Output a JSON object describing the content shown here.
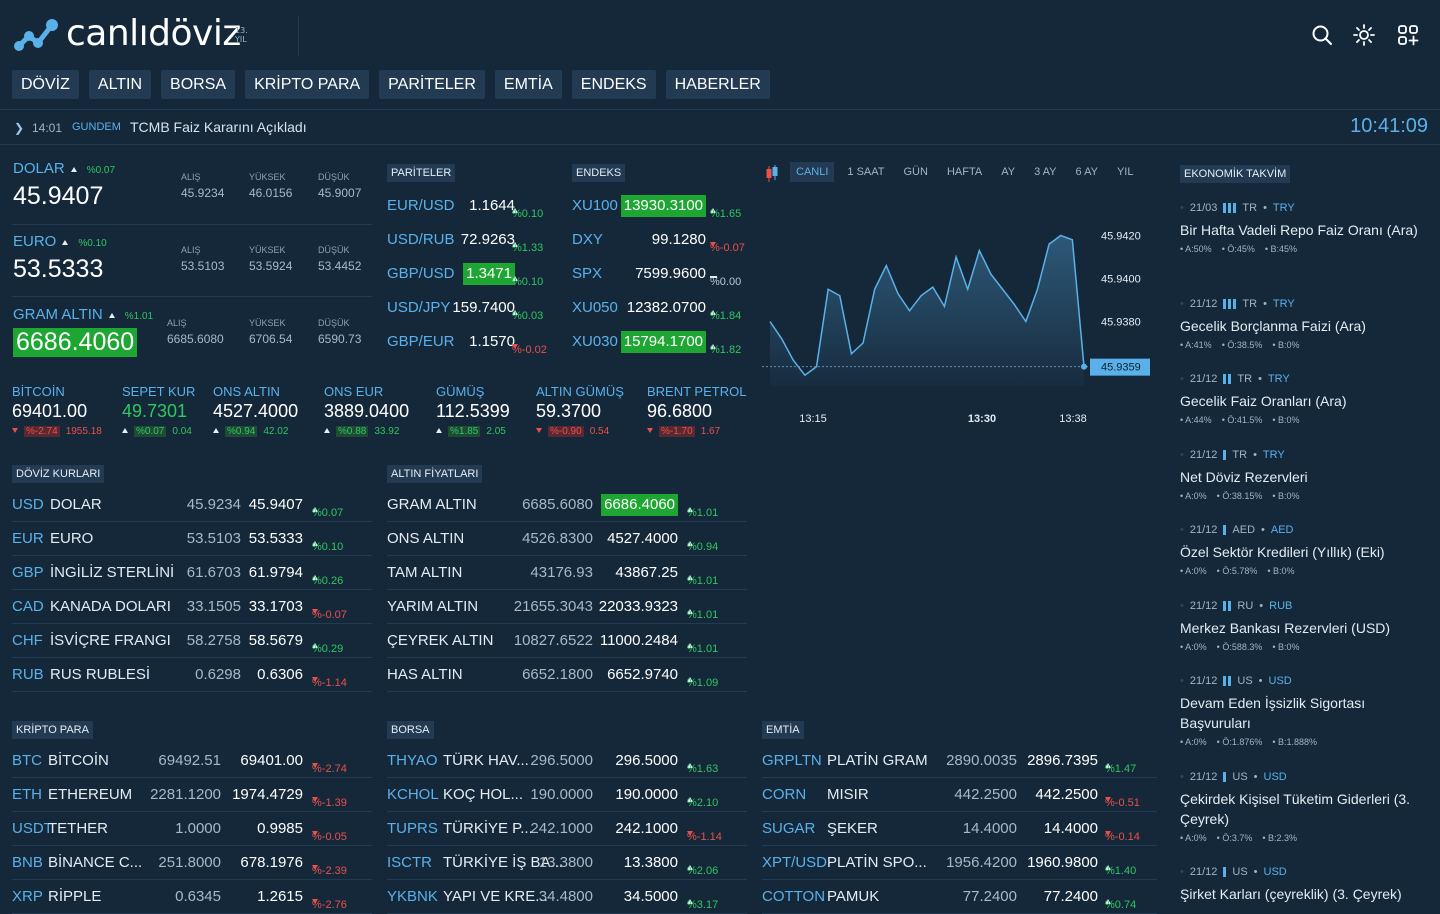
{
  "brand": {
    "name": "canlıdöviz",
    "badge": "13. YIL"
  },
  "nav": [
    "DÖVİZ",
    "ALTIN",
    "BORSA",
    "KRİPTO PARA",
    "PARİTELER",
    "EMTİA",
    "ENDEKS",
    "HABERLER"
  ],
  "ticker": {
    "time": "14:01",
    "category": "GUNDEM",
    "headline": "TCMB Faiz Kararını Açıkladı",
    "clock": "10:41:09"
  },
  "main_rates": [
    {
      "name": "DOLAR",
      "change": "%0.07",
      "value": "45.9407",
      "alis_label": "ALIŞ",
      "alis": "45.9234",
      "yuksek_label": "YÜKSEK",
      "yuksek": "46.0156",
      "dusuk_label": "DÜŞÜK",
      "dusuk": "45.9007"
    },
    {
      "name": "EURO",
      "change": "%0.10",
      "value": "53.5333",
      "alis_label": "ALIŞ",
      "alis": "53.5103",
      "yuksek_label": "YÜKSEK",
      "yuksek": "53.5924",
      "dusuk_label": "DÜŞÜK",
      "dusuk": "53.4452"
    },
    {
      "name": "GRAM ALTIN",
      "change": "%1.01",
      "value": "6686.4060",
      "alis_label": "ALIŞ",
      "alis": "6685.6080",
      "yuksek_label": "YÜKSEK",
      "yuksek": "6706.54",
      "dusuk_label": "DÜŞÜK",
      "dusuk": "6590.73"
    }
  ],
  "small_rates": [
    {
      "name": "BİTCOİN",
      "value": "69401.00",
      "pct": "%-2.74",
      "diff": "1955.18",
      "dir": "dn"
    },
    {
      "name": "SEPET KUR",
      "value": "49.7301",
      "pct": "%0.07",
      "diff": "0.04",
      "dir": "up"
    },
    {
      "name": "ONS ALTIN",
      "value": "4527.4000",
      "pct": "%0.94",
      "diff": "42.02",
      "dir": "up"
    },
    {
      "name": "ONS EUR",
      "value": "3889.0400",
      "pct": "%0.88",
      "diff": "33.92",
      "dir": "up"
    },
    {
      "name": "GÜMÜŞ",
      "value": "112.5399",
      "pct": "%1.85",
      "diff": "2.05",
      "dir": "up"
    },
    {
      "name": "ALTIN GÜMÜŞ",
      "value": "59.3700",
      "pct": "%-0.90",
      "diff": "0.54",
      "dir": "dn"
    },
    {
      "name": "BRENT PETROL",
      "value": "96.6800",
      "pct": "%-1.70",
      "diff": "1.67",
      "dir": "dn"
    }
  ],
  "pariteler": {
    "label": "PARİTELER",
    "rows": [
      {
        "code": "EUR/USD",
        "value": "1.1644",
        "chg": "%0.10",
        "dir": "up",
        "hl": false
      },
      {
        "code": "USD/RUB",
        "value": "72.9263",
        "chg": "%1.33",
        "dir": "up",
        "hl": false
      },
      {
        "code": "GBP/USD",
        "value": "1.3471",
        "chg": "%0.10",
        "dir": "up",
        "hl": true
      },
      {
        "code": "USD/JPY",
        "value": "159.7400",
        "chg": "%0.03",
        "dir": "up",
        "hl": false
      },
      {
        "code": "GBP/EUR",
        "value": "1.1570",
        "chg": "%-0.02",
        "dir": "dn",
        "hl": false
      }
    ]
  },
  "endeks": {
    "label": "ENDEKS",
    "rows": [
      {
        "code": "XU100",
        "value": "13930.3100",
        "chg": "%1.65",
        "dir": "up",
        "hl": true
      },
      {
        "code": "DXY",
        "value": "99.1280",
        "chg": "%-0.07",
        "dir": "dn",
        "hl": false
      },
      {
        "code": "SPX",
        "value": "7599.9600",
        "chg": "%0.00",
        "dir": "nt",
        "hl": false
      },
      {
        "code": "XU050",
        "value": "12382.0700",
        "chg": "%1.84",
        "dir": "up",
        "hl": false
      },
      {
        "code": "XU030",
        "value": "15794.1700",
        "chg": "%1.82",
        "dir": "up",
        "hl": true
      }
    ]
  },
  "chart_tabs": [
    "CANLI",
    "1 SAAT",
    "GÜN",
    "HAFTA",
    "AY",
    "3 AY",
    "6 AY",
    "YIL"
  ],
  "chart_data": {
    "type": "area",
    "x_ticks": [
      "13:15",
      "13:30",
      "13:38"
    ],
    "y_ticks": [
      "45.9420",
      "45.9400",
      "45.9380"
    ],
    "current": "45.9359",
    "ylim": [
      45.935,
      45.943
    ],
    "values": [
      45.938,
      45.9372,
      45.9362,
      45.9355,
      45.9359,
      45.9395,
      45.9392,
      45.9365,
      45.937,
      45.9395,
      45.9406,
      45.9393,
      45.9385,
      45.9392,
      45.9396,
      45.9387,
      45.941,
      45.9395,
      45.9413,
      45.9402,
      45.9395,
      45.9388,
      45.938,
      45.9395,
      45.9416,
      45.942,
      45.9418,
      45.9359
    ]
  },
  "doviz": {
    "label": "DÖVİZ KURLARI",
    "rows": [
      {
        "code": "USD",
        "name": "DOLAR",
        "buy": "45.9234",
        "sell": "45.9407",
        "chg": "%0.07",
        "dir": "up"
      },
      {
        "code": "EUR",
        "name": "EURO",
        "buy": "53.5103",
        "sell": "53.5333",
        "chg": "%0.10",
        "dir": "up"
      },
      {
        "code": "GBP",
        "name": "İNGİLİZ STERLİNİ",
        "buy": "61.6703",
        "sell": "61.9794",
        "chg": "%0.26",
        "dir": "up"
      },
      {
        "code": "CAD",
        "name": "KANADA DOLARI",
        "buy": "33.1505",
        "sell": "33.1703",
        "chg": "%-0.07",
        "dir": "dn"
      },
      {
        "code": "CHF",
        "name": "İSVİÇRE FRANGI",
        "buy": "58.2758",
        "sell": "58.5679",
        "chg": "%0.29",
        "dir": "up"
      },
      {
        "code": "RUB",
        "name": "RUS RUBLESİ",
        "buy": "0.6298",
        "sell": "0.6306",
        "chg": "%-1.14",
        "dir": "dn"
      }
    ]
  },
  "altin": {
    "label": "ALTIN FİYATLARI",
    "rows": [
      {
        "name": "GRAM ALTIN",
        "buy": "6685.6080",
        "sell": "6686.4060",
        "chg": "%1.01",
        "dir": "up",
        "hl": true
      },
      {
        "name": "ONS ALTIN",
        "buy": "4526.8300",
        "sell": "4527.4000",
        "chg": "%0.94",
        "dir": "up",
        "hl": false
      },
      {
        "name": "TAM ALTIN",
        "buy": "43176.93",
        "sell": "43867.25",
        "chg": "%1.01",
        "dir": "up",
        "hl": false
      },
      {
        "name": "YARIM ALTIN",
        "buy": "21655.3043",
        "sell": "22033.9323",
        "chg": "%1.01",
        "dir": "up",
        "hl": false
      },
      {
        "name": "ÇEYREK ALTIN",
        "buy": "10827.6522",
        "sell": "11000.2484",
        "chg": "%1.01",
        "dir": "up",
        "hl": false
      },
      {
        "name": "HAS ALTIN",
        "buy": "6652.1800",
        "sell": "6652.9740",
        "chg": "%1.09",
        "dir": "up",
        "hl": false
      }
    ]
  },
  "kripto": {
    "label": "KRİPTO PARA",
    "rows": [
      {
        "code": "BTC",
        "name": "BİTCOİN",
        "buy": "69492.51",
        "sell": "69401.00",
        "chg": "%-2.74",
        "dir": "dn"
      },
      {
        "code": "ETH",
        "name": "ETHEREUM",
        "buy": "2281.1200",
        "sell": "1974.4729",
        "chg": "%-1.39",
        "dir": "dn"
      },
      {
        "code": "USDT",
        "name": "TETHER",
        "buy": "1.0000",
        "sell": "0.9985",
        "chg": "%-0.05",
        "dir": "dn"
      },
      {
        "code": "BNB",
        "name": "BİNANCE C...",
        "buy": "251.8000",
        "sell": "678.1976",
        "chg": "%-2.39",
        "dir": "dn"
      },
      {
        "code": "XRP",
        "name": "RİPPLE",
        "buy": "0.6345",
        "sell": "1.2615",
        "chg": "%-2.76",
        "dir": "dn"
      }
    ]
  },
  "borsa": {
    "label": "BORSA",
    "rows": [
      {
        "code": "THYAO",
        "name": "TÜRK HAV...",
        "buy": "296.5000",
        "sell": "296.5000",
        "chg": "%1.63",
        "dir": "up"
      },
      {
        "code": "KCHOL",
        "name": "KOÇ HOL...",
        "buy": "190.0000",
        "sell": "190.0000",
        "chg": "%2.10",
        "dir": "up"
      },
      {
        "code": "TUPRS",
        "name": "TÜRKİYE P...",
        "buy": "242.1000",
        "sell": "242.1000",
        "chg": "%-1.14",
        "dir": "dn"
      },
      {
        "code": "ISCTR",
        "name": "TÜRKİYE İŞ BA...",
        "buy": "13.3800",
        "sell": "13.3800",
        "chg": "%2.06",
        "dir": "up"
      },
      {
        "code": "YKBNK",
        "name": "YAPI VE KRE...",
        "buy": "34.4800",
        "sell": "34.5000",
        "chg": "%3.17",
        "dir": "up"
      }
    ]
  },
  "emtia": {
    "label": "EMTİA",
    "rows": [
      {
        "code": "GRPLTN",
        "name": "PLATİN GRAM",
        "buy": "2890.0035",
        "sell": "2896.7395",
        "chg": "%1.47",
        "dir": "up"
      },
      {
        "code": "CORN",
        "name": "MISIR",
        "buy": "442.2500",
        "sell": "442.2500",
        "chg": "%-0.51",
        "dir": "dn"
      },
      {
        "code": "SUGAR",
        "name": "ŞEKER",
        "buy": "14.4000",
        "sell": "14.4000",
        "chg": "%-0.14",
        "dir": "dn"
      },
      {
        "code": "XPT/USD",
        "name": "PLATİN SPO...",
        "buy": "1956.4200",
        "sell": "1960.9800",
        "chg": "%1.40",
        "dir": "up"
      },
      {
        "code": "COTTON",
        "name": "PAMUK",
        "buy": "77.2400",
        "sell": "77.2400",
        "chg": "%0.74",
        "dir": "up"
      }
    ]
  },
  "calendar": {
    "label": "EKONOMİK TAKVİM",
    "events": [
      {
        "date": "21/03",
        "bars": 3,
        "country": "TR",
        "currency": "TRY",
        "title": "Bir Hafta Vadeli Repo Faiz Oranı (Ara)",
        "a": "A:50%",
        "o": "Ö:45%",
        "b": "B:45%"
      },
      {
        "date": "21/12",
        "bars": 3,
        "country": "TR",
        "currency": "TRY",
        "title": "Gecelik Borçlanma Faizi (Ara)",
        "a": "A:41%",
        "o": "Ö:38.5%",
        "b": "B:0%"
      },
      {
        "date": "21/12",
        "bars": 2,
        "country": "TR",
        "currency": "TRY",
        "title": "Gecelik Faiz Oranları (Ara)",
        "a": "A:44%",
        "o": "Ö:41.5%",
        "b": "B:0%"
      },
      {
        "date": "21/12",
        "bars": 1,
        "country": "TR",
        "currency": "TRY",
        "title": "Net Döviz Rezervleri",
        "a": "A:0%",
        "o": "Ö:38.15%",
        "b": "B:0%"
      },
      {
        "date": "21/12",
        "bars": 1,
        "country": "AED",
        "currency": "AED",
        "title": "Özel Sektör Kredileri (Yıllık) (Eki)",
        "a": "A:0%",
        "o": "Ö:5.78%",
        "b": "B:0%"
      },
      {
        "date": "21/12",
        "bars": 2,
        "country": "RU",
        "currency": "RUB",
        "title": "Merkez Bankası Rezervleri (USD)",
        "a": "A:0%",
        "o": "Ö:588.3%",
        "b": "B:0%"
      },
      {
        "date": "21/12",
        "bars": 2,
        "country": "US",
        "currency": "USD",
        "title": "Devam Eden İşsizlik Sigortası Başvuruları",
        "a": "A:0%",
        "o": "Ö:1.876%",
        "b": "B:1.888%"
      },
      {
        "date": "21/12",
        "bars": 1,
        "country": "US",
        "currency": "USD",
        "title": "Çekirdek Kişisel Tüketim Giderleri (3. Çeyrek)",
        "a": "A:0%",
        "o": "Ö:3.7%",
        "b": "B:2.3%"
      },
      {
        "date": "21/12",
        "bars": 1,
        "country": "US",
        "currency": "USD",
        "title": "Şirket Karları (çeyreklik) (3. Çeyrek)",
        "a": "",
        "o": "",
        "b": ""
      }
    ]
  }
}
